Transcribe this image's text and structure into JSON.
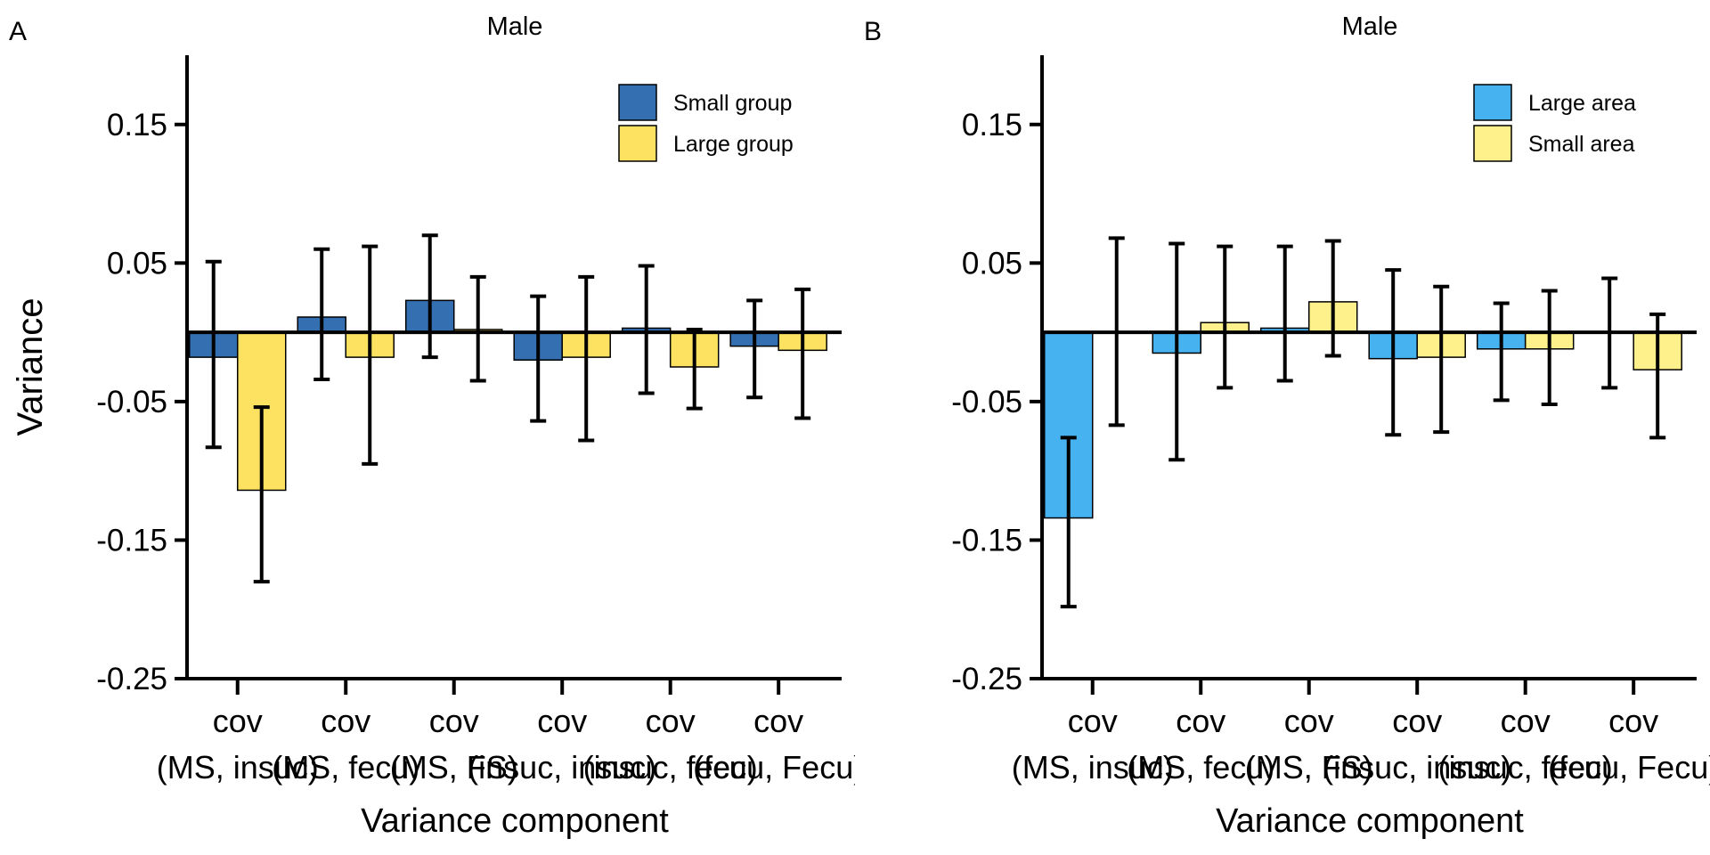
{
  "colors": {
    "small_group": "#3470b1",
    "large_group": "#fde262",
    "large_area": "#47b2f0",
    "small_area": "#fef08a",
    "axis": "#000000"
  },
  "chart_data": [
    {
      "panel": "A",
      "type": "bar",
      "title": "Male",
      "xlabel": "Variance component",
      "ylabel": "Variance",
      "ylim": [
        -0.25,
        0.2
      ],
      "yticks": [
        0.15,
        0.05,
        -0.05,
        -0.15,
        -0.25
      ],
      "ytick_labels": [
        "0.15",
        "0.05",
        "-0.05",
        "-0.15",
        "-0.25"
      ],
      "legend_position": "top-right",
      "categories": [
        {
          "line1": "cov",
          "line2": "(MS, insuc)"
        },
        {
          "line1": "cov",
          "line2": "(MS, fecu)"
        },
        {
          "line1": "cov",
          "line2": "(MS, FS)"
        },
        {
          "line1": "cov",
          "line2": "(insuc, insuc)"
        },
        {
          "line1": "cov",
          "line2": "(insuc, fecu)"
        },
        {
          "line1": "cov",
          "line2": "(fecu, Fecu)"
        }
      ],
      "series": [
        {
          "name": "Small group",
          "color_key": "small_group",
          "values": [
            -0.018,
            0.011,
            0.023,
            -0.02,
            0.003,
            -0.01
          ],
          "err_low": [
            -0.083,
            -0.034,
            -0.018,
            -0.064,
            -0.044,
            -0.047
          ],
          "err_high": [
            0.051,
            0.06,
            0.07,
            0.026,
            0.048,
            0.023
          ]
        },
        {
          "name": "Large group",
          "color_key": "large_group",
          "values": [
            -0.114,
            -0.018,
            0.002,
            -0.018,
            -0.025,
            -0.013
          ],
          "err_low": [
            -0.18,
            -0.095,
            -0.035,
            -0.078,
            -0.055,
            -0.062
          ],
          "err_high": [
            -0.054,
            0.062,
            0.04,
            0.04,
            0.002,
            0.031
          ]
        }
      ]
    },
    {
      "panel": "B",
      "type": "bar",
      "title": "Male",
      "xlabel": "Variance component",
      "ylabel": "",
      "ylim": [
        -0.25,
        0.2
      ],
      "yticks": [
        0.15,
        0.05,
        -0.05,
        -0.15,
        -0.25
      ],
      "ytick_labels": [
        "0.15",
        "0.05",
        "-0.05",
        "-0.15",
        "-0.25"
      ],
      "legend_position": "top-right",
      "categories": [
        {
          "line1": "cov",
          "line2": "(MS, insuc)"
        },
        {
          "line1": "cov",
          "line2": "(MS, fecu)"
        },
        {
          "line1": "cov",
          "line2": "(MS, FS)"
        },
        {
          "line1": "cov",
          "line2": "(insuc, insuc)"
        },
        {
          "line1": "cov",
          "line2": "(insuc, fecu)"
        },
        {
          "line1": "cov",
          "line2": "(fecu, Fecu)"
        }
      ],
      "series": [
        {
          "name": "Large area",
          "color_key": "large_area",
          "values": [
            -0.134,
            -0.015,
            0.003,
            -0.019,
            -0.012,
            0.0
          ],
          "err_low": [
            -0.198,
            -0.092,
            -0.035,
            -0.074,
            -0.049,
            -0.04
          ],
          "err_high": [
            -0.076,
            0.064,
            0.062,
            0.045,
            0.021,
            0.039
          ]
        },
        {
          "name": "Small area",
          "color_key": "small_area",
          "values": [
            0.0,
            0.007,
            0.022,
            -0.018,
            -0.012,
            -0.027
          ],
          "err_low": [
            -0.067,
            -0.04,
            -0.017,
            -0.072,
            -0.052,
            -0.076
          ],
          "err_high": [
            0.068,
            0.062,
            0.066,
            0.033,
            0.03,
            0.013
          ]
        }
      ]
    }
  ]
}
